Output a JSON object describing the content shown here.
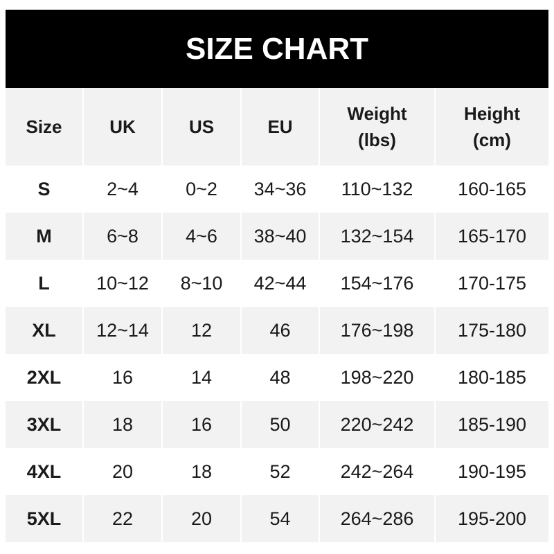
{
  "title": "SIZE CHART",
  "headers": [
    [
      "Size",
      ""
    ],
    [
      "UK",
      ""
    ],
    [
      "US",
      ""
    ],
    [
      "EU",
      ""
    ],
    [
      "Weight",
      "(lbs)"
    ],
    [
      "Height",
      "(cm)"
    ]
  ],
  "rows": [
    [
      "S",
      "2~4",
      "0~2",
      "34~36",
      "110~132",
      "160-165"
    ],
    [
      "M",
      "6~8",
      "4~6",
      "38~40",
      "132~154",
      "165-170"
    ],
    [
      "L",
      "10~12",
      "8~10",
      "42~44",
      "154~176",
      "170-175"
    ],
    [
      "XL",
      "12~14",
      "12",
      "46",
      "176~198",
      "175-180"
    ],
    [
      "2XL",
      "16",
      "14",
      "48",
      "198~220",
      "180-185"
    ],
    [
      "3XL",
      "18",
      "16",
      "50",
      "220~242",
      "185-190"
    ],
    [
      "4XL",
      "20",
      "18",
      "52",
      "242~264",
      "190-195"
    ],
    [
      "5XL",
      "22",
      "20",
      "54",
      "264~286",
      "195-200"
    ]
  ]
}
